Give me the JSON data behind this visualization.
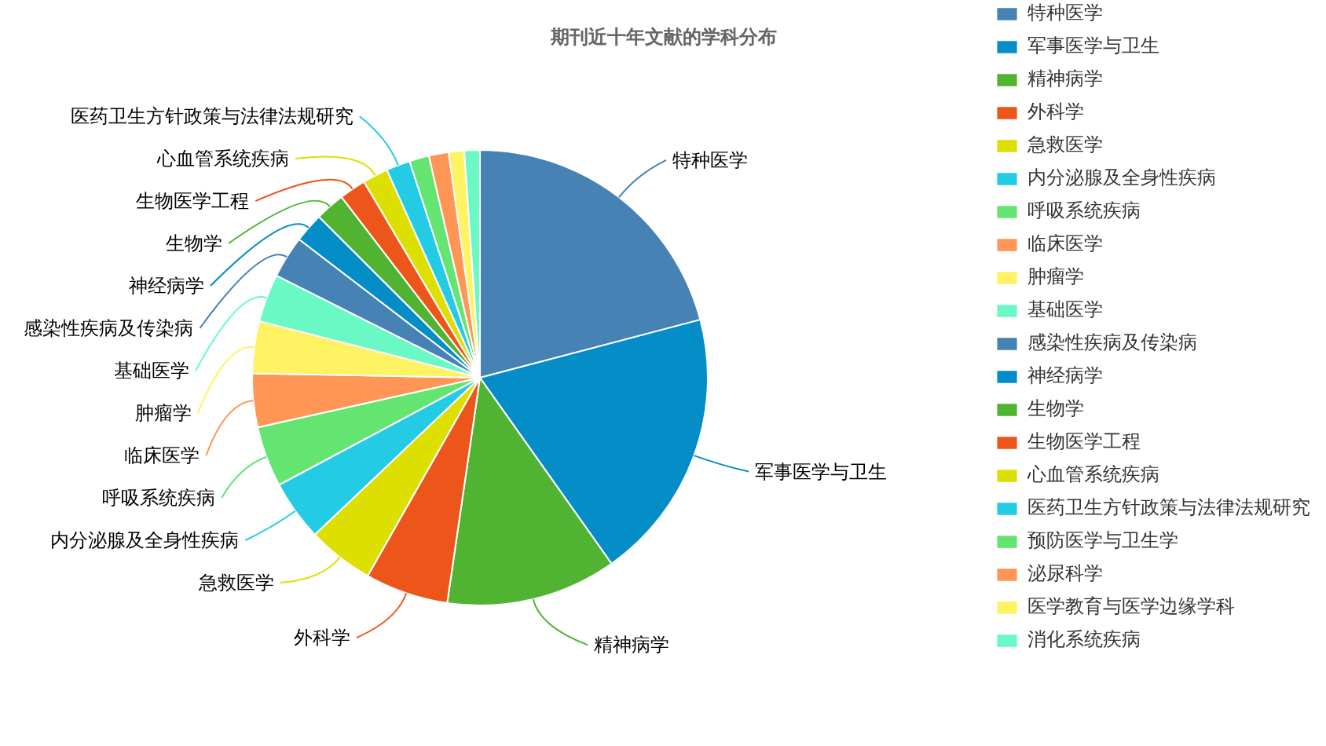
{
  "chart_data": {
    "type": "pie",
    "title": "期刊近十年文献的学科分布",
    "categories": [
      "特种医学",
      "军事医学与卫生",
      "精神病学",
      "外科学",
      "急救医学",
      "内分泌腺及全身性疾病",
      "呼吸系统疾病",
      "临床医学",
      "肿瘤学",
      "基础医学",
      "感染性疾病及传染病",
      "神经病学",
      "生物学",
      "生物医学工程",
      "心血管系统疾病",
      "医药卫生方针政策与法律法规研究",
      "预防医学与卫生学",
      "泌尿科学",
      "医学教育与医学边缘学科",
      "消化系统疾病"
    ],
    "values": [
      20.9,
      19.3,
      12.1,
      5.9,
      4.7,
      4.3,
      4.3,
      3.8,
      3.7,
      3.4,
      3.0,
      2.1,
      2.1,
      1.9,
      1.8,
      1.7,
      1.4,
      1.4,
      1.1,
      1.1
    ],
    "colors": [
      "#4682b4",
      "#058dc7",
      "#50b432",
      "#ed561b",
      "#dddf00",
      "#24cbe5",
      "#64e572",
      "#ff9655",
      "#fff263",
      "#6af9c4",
      "#4682b4",
      "#058dc7",
      "#50b432",
      "#ed561b",
      "#dddf00",
      "#24cbe5",
      "#64e572",
      "#ff9655",
      "#fff263",
      "#6af9c4"
    ],
    "legend": "right"
  }
}
